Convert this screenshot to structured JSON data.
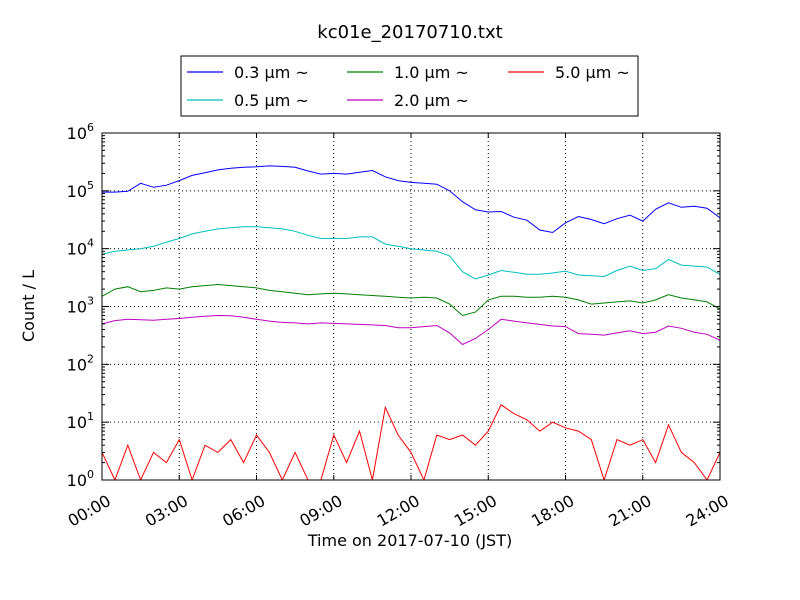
{
  "chart_data": {
    "type": "line",
    "title": "kc01e_20170710.txt",
    "xlabel": "Time on 2017-07-10 (JST)",
    "ylabel": "Count / L",
    "y_scale": "log",
    "ylim": [
      1,
      1000000
    ],
    "xlim": [
      "00:00",
      "24:00"
    ],
    "x_ticks": [
      "00:00",
      "03:00",
      "06:00",
      "09:00",
      "12:00",
      "15:00",
      "18:00",
      "21:00",
      "24:00"
    ],
    "y_ticks": [
      {
        "base": "10",
        "exp": "0",
        "value": 1
      },
      {
        "base": "10",
        "exp": "1",
        "value": 10
      },
      {
        "base": "10",
        "exp": "2",
        "value": 100
      },
      {
        "base": "10",
        "exp": "3",
        "value": 1000
      },
      {
        "base": "10",
        "exp": "4",
        "value": 10000
      },
      {
        "base": "10",
        "exp": "5",
        "value": 100000
      },
      {
        "base": "10",
        "exp": "6",
        "value": 1000000
      }
    ],
    "grid": true,
    "legend_position": "top-center",
    "x": [
      "00:00",
      "00:30",
      "01:00",
      "01:30",
      "02:00",
      "02:30",
      "03:00",
      "03:30",
      "04:00",
      "04:30",
      "05:00",
      "05:30",
      "06:00",
      "06:30",
      "07:00",
      "07:30",
      "08:00",
      "08:30",
      "09:00",
      "09:30",
      "10:00",
      "10:30",
      "11:00",
      "11:30",
      "12:00",
      "12:30",
      "13:00",
      "13:30",
      "14:00",
      "14:30",
      "15:00",
      "15:30",
      "16:00",
      "16:30",
      "17:00",
      "17:30",
      "18:00",
      "18:30",
      "19:00",
      "19:30",
      "20:00",
      "20:30",
      "21:00",
      "21:30",
      "22:00",
      "22:30",
      "23:00",
      "23:30",
      "24:00"
    ],
    "series": [
      {
        "name": "0.3 μm ~",
        "color": "#0000ff",
        "values": [
          95000,
          95000,
          98000,
          135000,
          115000,
          125000,
          150000,
          185000,
          205000,
          230000,
          245000,
          255000,
          260000,
          270000,
          265000,
          255000,
          220000,
          195000,
          200000,
          195000,
          210000,
          225000,
          175000,
          150000,
          140000,
          135000,
          130000,
          100000,
          65000,
          47000,
          43000,
          44000,
          35000,
          31000,
          21000,
          19000,
          28000,
          36000,
          32000,
          27000,
          33000,
          38000,
          30000,
          48000,
          62000,
          52000,
          54000,
          50000,
          34000
        ]
      },
      {
        "name": "0.5 μm ~",
        "color": "#00bfbf",
        "values": [
          8000,
          9000,
          9500,
          10000,
          11000,
          13000,
          15000,
          18000,
          20000,
          22000,
          23000,
          24000,
          24000,
          23000,
          22000,
          20000,
          17000,
          15000,
          15000,
          15000,
          16000,
          16000,
          12000,
          11000,
          10000,
          9500,
          9000,
          7500,
          4000,
          3000,
          3500,
          4200,
          3900,
          3600,
          3600,
          3800,
          4100,
          3500,
          3400,
          3300,
          4200,
          5000,
          4200,
          4500,
          6500,
          5200,
          5000,
          4800,
          3600
        ]
      },
      {
        "name": "1.0 μm ~",
        "color": "#008000",
        "values": [
          1500,
          2000,
          2200,
          1800,
          1900,
          2100,
          2000,
          2200,
          2300,
          2400,
          2300,
          2200,
          2100,
          1900,
          1800,
          1700,
          1600,
          1650,
          1700,
          1650,
          1600,
          1550,
          1500,
          1450,
          1400,
          1450,
          1400,
          1100,
          700,
          800,
          1300,
          1500,
          1500,
          1450,
          1450,
          1500,
          1450,
          1300,
          1100,
          1150,
          1200,
          1250,
          1150,
          1300,
          1600,
          1400,
          1300,
          1200,
          900
        ]
      },
      {
        "name": "2.0 μm ~",
        "color": "#bf00bf",
        "values": [
          500,
          570,
          600,
          590,
          580,
          600,
          620,
          650,
          680,
          700,
          690,
          650,
          600,
          560,
          530,
          520,
          500,
          520,
          510,
          500,
          490,
          480,
          470,
          430,
          430,
          450,
          470,
          350,
          220,
          280,
          400,
          600,
          560,
          520,
          490,
          460,
          450,
          340,
          330,
          320,
          350,
          380,
          340,
          360,
          460,
          420,
          360,
          330,
          260
        ]
      },
      {
        "name": "5.0 μm ~",
        "color": "#ff0000",
        "values": [
          3,
          1,
          4,
          1,
          3,
          2,
          5,
          1,
          4,
          3,
          5,
          2,
          6,
          3,
          1,
          3,
          1,
          1,
          6,
          2,
          7,
          1,
          18,
          6,
          3,
          1,
          6,
          5,
          6,
          4,
          7,
          20,
          14,
          11,
          7,
          10,
          8,
          7,
          5,
          1,
          5,
          4,
          5,
          2,
          9,
          3,
          2,
          1,
          3
        ]
      }
    ]
  }
}
